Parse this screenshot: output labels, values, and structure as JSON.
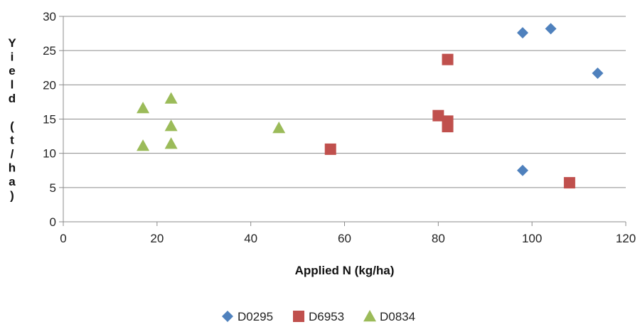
{
  "chart_data": {
    "type": "scatter",
    "xlabel": "Applied N (kg/ha)",
    "ylabel": "Yield (t/ha)",
    "xlim": [
      0,
      120
    ],
    "ylim": [
      0,
      30
    ],
    "xticks": [
      "0",
      "20",
      "40",
      "60",
      "80",
      "100",
      "120"
    ],
    "yticks": [
      "0",
      "5",
      "10",
      "15",
      "20",
      "25",
      "30"
    ],
    "grid": "horizontal",
    "legend_position": "bottom",
    "series": [
      {
        "name": "D0295",
        "marker": "diamond",
        "color": "#4F81BD",
        "points": [
          [
            98,
            27.6
          ],
          [
            104,
            28.2
          ],
          [
            114,
            21.7
          ],
          [
            98,
            7.5
          ]
        ]
      },
      {
        "name": "D6953",
        "marker": "square",
        "color": "#C0504D",
        "points": [
          [
            82,
            23.7
          ],
          [
            80,
            15.5
          ],
          [
            82,
            14.7
          ],
          [
            82,
            14.2
          ],
          [
            82,
            13.9
          ],
          [
            57,
            10.6
          ],
          [
            108,
            5.7
          ]
        ]
      },
      {
        "name": "D0834",
        "marker": "triangle",
        "color": "#9BBB59",
        "points": [
          [
            17,
            16.6
          ],
          [
            23,
            18.0
          ],
          [
            23,
            14.0
          ],
          [
            17,
            11.1
          ],
          [
            23,
            11.4
          ],
          [
            46,
            13.7
          ]
        ]
      }
    ]
  }
}
